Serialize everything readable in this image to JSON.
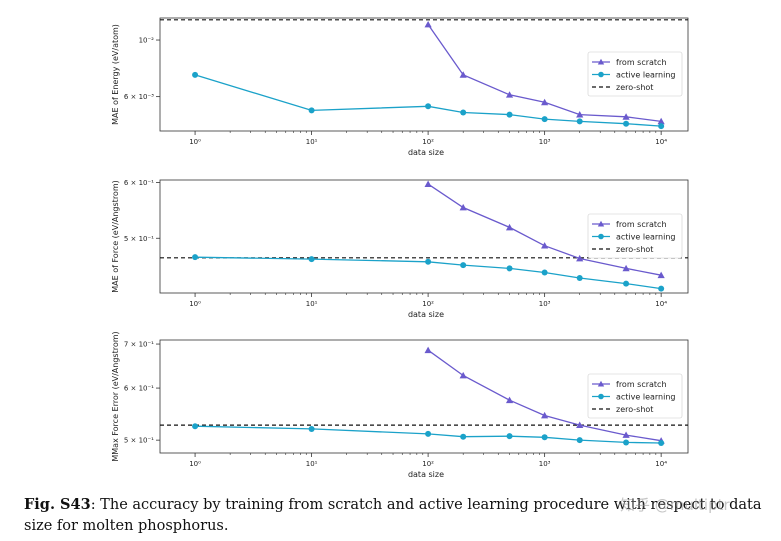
{
  "caption": {
    "label": "Fig. S43",
    "text": ": The accuracy by training from scratch and active learning procedure with respect to data size for molten phosphorus."
  },
  "watermark": "知乎 @multiptr",
  "colors": {
    "scratch": "#6a5acd",
    "active": "#1ba2c9",
    "zero": "#111111",
    "frame": "#333333"
  },
  "chart_data": [
    {
      "type": "line",
      "xlabel": "data size",
      "ylabel": "MAE of Energy (eV/atom)",
      "xscale": "log",
      "yscale": "log",
      "xlim": [
        0.5,
        17000
      ],
      "ylim": [
        0.0044,
        0.0122
      ],
      "xticks": [
        1,
        10,
        100,
        1000,
        10000
      ],
      "xticklabels": [
        "10⁰",
        "10¹",
        "10²",
        "10³",
        "10⁴"
      ],
      "yticks": [
        0.01,
        0.006
      ],
      "yticklabels": [
        "10⁻²",
        "6 × 10⁻³"
      ],
      "legend_position": "right",
      "series": [
        {
          "name": "from scratch",
          "marker": "triangle",
          "x": [
            100,
            200,
            500,
            1000,
            2000,
            5000,
            10000
          ],
          "y": [
            0.0115,
            0.0073,
            0.0061,
            0.0057,
            0.0051,
            0.005,
            0.0048
          ]
        },
        {
          "name": "active learning",
          "marker": "circle",
          "x": [
            1,
            10,
            100,
            200,
            500,
            1000,
            2000,
            5000,
            10000
          ],
          "y": [
            0.0073,
            0.0053,
            0.0055,
            0.0052,
            0.0051,
            0.0049,
            0.0048,
            0.0047,
            0.0046
          ]
        }
      ],
      "reference_line": {
        "name": "zero-shot",
        "y": 0.012
      }
    },
    {
      "type": "line",
      "xlabel": "data size",
      "ylabel": "MAE of Force (eV/Angstrom)",
      "xscale": "log",
      "yscale": "log",
      "xlim": [
        0.5,
        17000
      ],
      "ylim": [
        0.418,
        0.605
      ],
      "xticks": [
        1,
        10,
        100,
        1000,
        10000
      ],
      "xticklabels": [
        "10⁰",
        "10¹",
        "10²",
        "10³",
        "10⁴"
      ],
      "yticks": [
        0.6,
        0.5
      ],
      "yticklabels": [
        "6 × 10⁻¹",
        "5 × 10⁻¹"
      ],
      "legend_position": "right",
      "series": [
        {
          "name": "from scratch",
          "marker": "triangle",
          "x": [
            100,
            200,
            500,
            1000,
            2000,
            5000,
            10000
          ],
          "y": [
            0.597,
            0.553,
            0.518,
            0.488,
            0.468,
            0.453,
            0.443
          ]
        },
        {
          "name": "active learning",
          "marker": "circle",
          "x": [
            1,
            10,
            100,
            200,
            500,
            1000,
            2000,
            5000,
            10000
          ],
          "y": [
            0.47,
            0.467,
            0.463,
            0.458,
            0.453,
            0.447,
            0.439,
            0.431,
            0.424
          ]
        }
      ],
      "reference_line": {
        "name": "zero-shot",
        "y": 0.469
      }
    },
    {
      "type": "line",
      "xlabel": "data size",
      "ylabel": "MMax Force Error (eV/Angstrom)",
      "xscale": "log",
      "yscale": "log",
      "xlim": [
        0.5,
        17000
      ],
      "ylim": [
        0.478,
        0.71
      ],
      "xticks": [
        1,
        10,
        100,
        1000,
        10000
      ],
      "xticklabels": [
        "10⁰",
        "10¹",
        "10²",
        "10³",
        "10⁴"
      ],
      "yticks": [
        0.7,
        0.6,
        0.5
      ],
      "yticklabels": [
        "7 × 10⁻¹",
        "6 × 10⁻¹",
        "5 × 10⁻¹"
      ],
      "legend_position": "right",
      "series": [
        {
          "name": "from scratch",
          "marker": "triangle",
          "x": [
            100,
            200,
            500,
            1000,
            2000,
            5000,
            10000
          ],
          "y": [
            0.685,
            0.627,
            0.575,
            0.545,
            0.527,
            0.509,
            0.499
          ]
        },
        {
          "name": "active learning",
          "marker": "circle",
          "x": [
            1,
            10,
            100,
            200,
            500,
            1000,
            2000,
            5000,
            10000
          ],
          "y": [
            0.525,
            0.52,
            0.511,
            0.506,
            0.507,
            0.505,
            0.5,
            0.496,
            0.495
          ]
        }
      ],
      "reference_line": {
        "name": "zero-shot",
        "y": 0.527
      }
    }
  ]
}
